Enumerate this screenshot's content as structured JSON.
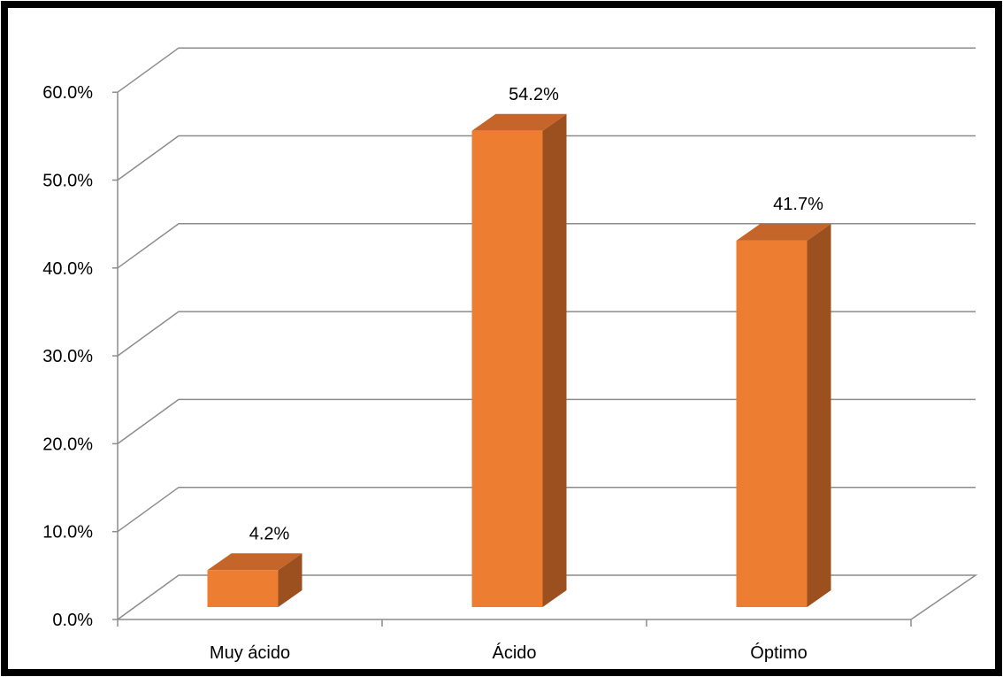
{
  "chart_data": {
    "type": "bar",
    "categories": [
      "Muy ácido",
      "Ácido",
      "Óptimo"
    ],
    "values": [
      4.2,
      54.2,
      41.7
    ],
    "data_labels": [
      "4.2%",
      "54.2%",
      "41.7%"
    ],
    "yticks": [
      0,
      10,
      20,
      30,
      40,
      50,
      60
    ],
    "ytick_labels": [
      "0.0%",
      "10.0%",
      "20.0%",
      "30.0%",
      "40.0%",
      "50.0%",
      "60.0%"
    ],
    "ylim": [
      0,
      60
    ],
    "grid": true,
    "legend": "none",
    "three_d": true,
    "colors": {
      "bar_front": "#ED7D31",
      "bar_top": "#C5652A",
      "bar_side": "#9C4F1F",
      "grid": "#8C8C8C",
      "frame": "#000000"
    }
  }
}
